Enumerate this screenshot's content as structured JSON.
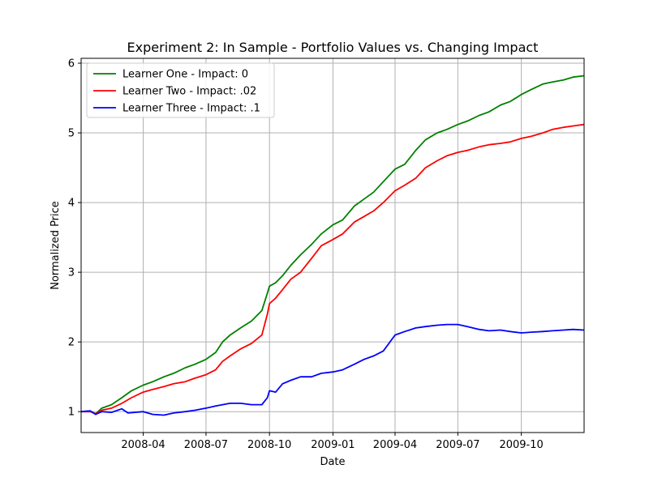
{
  "chart_data": {
    "type": "line",
    "title": "Experiment 2: In Sample - Portfolio Values vs. Changing Impact",
    "xlabel": "Date",
    "ylabel": "Normalized Price",
    "xlim": [
      "2008-01-02",
      "2009-12-31"
    ],
    "ylim": [
      0.7,
      6.07
    ],
    "x_ticks": [
      "2008-04-01",
      "2008-07-01",
      "2008-10-01",
      "2009-01-01",
      "2009-04-01",
      "2009-07-01",
      "2009-10-01"
    ],
    "x_tick_labels": [
      "2008-04",
      "2008-07",
      "2008-10",
      "2009-01",
      "2009-04",
      "2009-07",
      "2009-10"
    ],
    "y_ticks": [
      1,
      2,
      3,
      4,
      5,
      6
    ],
    "y_tick_labels": [
      "1",
      "2",
      "3",
      "4",
      "5",
      "6"
    ],
    "grid": true,
    "legend_position": "top-left",
    "series": [
      {
        "name": "Learner One - Impact: 0",
        "color": "#008000",
        "points": [
          [
            "2008-01-02",
            1.0
          ],
          [
            "2008-01-15",
            1.01
          ],
          [
            "2008-01-23",
            0.97
          ],
          [
            "2008-02-01",
            1.05
          ],
          [
            "2008-02-15",
            1.1
          ],
          [
            "2008-03-01",
            1.2
          ],
          [
            "2008-03-15",
            1.3
          ],
          [
            "2008-04-01",
            1.38
          ],
          [
            "2008-04-15",
            1.43
          ],
          [
            "2008-05-01",
            1.5
          ],
          [
            "2008-05-15",
            1.55
          ],
          [
            "2008-06-01",
            1.63
          ],
          [
            "2008-06-15",
            1.68
          ],
          [
            "2008-07-01",
            1.75
          ],
          [
            "2008-07-15",
            1.85
          ],
          [
            "2008-07-25",
            2.0
          ],
          [
            "2008-08-05",
            2.1
          ],
          [
            "2008-08-20",
            2.2
          ],
          [
            "2008-09-05",
            2.3
          ],
          [
            "2008-09-20",
            2.45
          ],
          [
            "2008-09-28",
            2.7
          ],
          [
            "2008-10-01",
            2.8
          ],
          [
            "2008-10-10",
            2.85
          ],
          [
            "2008-10-20",
            2.95
          ],
          [
            "2008-11-01",
            3.1
          ],
          [
            "2008-11-15",
            3.25
          ],
          [
            "2008-12-01",
            3.4
          ],
          [
            "2008-12-15",
            3.55
          ],
          [
            "2009-01-01",
            3.68
          ],
          [
            "2009-01-15",
            3.75
          ],
          [
            "2009-02-01",
            3.95
          ],
          [
            "2009-02-15",
            4.05
          ],
          [
            "2009-03-01",
            4.15
          ],
          [
            "2009-03-15",
            4.3
          ],
          [
            "2009-04-01",
            4.48
          ],
          [
            "2009-04-15",
            4.55
          ],
          [
            "2009-05-01",
            4.75
          ],
          [
            "2009-05-15",
            4.9
          ],
          [
            "2009-06-01",
            5.0
          ],
          [
            "2009-06-15",
            5.05
          ],
          [
            "2009-07-01",
            5.12
          ],
          [
            "2009-07-15",
            5.17
          ],
          [
            "2009-08-01",
            5.25
          ],
          [
            "2009-08-15",
            5.3
          ],
          [
            "2009-09-01",
            5.4
          ],
          [
            "2009-09-15",
            5.45
          ],
          [
            "2009-10-01",
            5.55
          ],
          [
            "2009-10-15",
            5.62
          ],
          [
            "2009-11-01",
            5.7
          ],
          [
            "2009-11-15",
            5.73
          ],
          [
            "2009-12-01",
            5.76
          ],
          [
            "2009-12-15",
            5.8
          ],
          [
            "2009-12-31",
            5.82
          ]
        ]
      },
      {
        "name": "Learner Two - Impact: .02",
        "color": "#ff0000",
        "points": [
          [
            "2008-01-02",
            1.0
          ],
          [
            "2008-01-15",
            1.0
          ],
          [
            "2008-01-23",
            0.97
          ],
          [
            "2008-02-01",
            1.02
          ],
          [
            "2008-02-15",
            1.05
          ],
          [
            "2008-03-01",
            1.12
          ],
          [
            "2008-03-15",
            1.2
          ],
          [
            "2008-04-01",
            1.28
          ],
          [
            "2008-04-15",
            1.32
          ],
          [
            "2008-05-01",
            1.36
          ],
          [
            "2008-05-15",
            1.4
          ],
          [
            "2008-06-01",
            1.43
          ],
          [
            "2008-06-15",
            1.48
          ],
          [
            "2008-07-01",
            1.53
          ],
          [
            "2008-07-15",
            1.6
          ],
          [
            "2008-07-25",
            1.72
          ],
          [
            "2008-08-05",
            1.8
          ],
          [
            "2008-08-20",
            1.9
          ],
          [
            "2008-09-05",
            1.98
          ],
          [
            "2008-09-20",
            2.1
          ],
          [
            "2008-09-28",
            2.4
          ],
          [
            "2008-10-01",
            2.55
          ],
          [
            "2008-10-10",
            2.63
          ],
          [
            "2008-10-20",
            2.75
          ],
          [
            "2008-11-01",
            2.9
          ],
          [
            "2008-11-15",
            3.0
          ],
          [
            "2008-12-01",
            3.2
          ],
          [
            "2008-12-15",
            3.38
          ],
          [
            "2009-01-01",
            3.47
          ],
          [
            "2009-01-15",
            3.55
          ],
          [
            "2009-02-01",
            3.72
          ],
          [
            "2009-02-15",
            3.8
          ],
          [
            "2009-03-01",
            3.88
          ],
          [
            "2009-03-15",
            4.0
          ],
          [
            "2009-04-01",
            4.17
          ],
          [
            "2009-04-15",
            4.25
          ],
          [
            "2009-05-01",
            4.35
          ],
          [
            "2009-05-15",
            4.5
          ],
          [
            "2009-06-01",
            4.6
          ],
          [
            "2009-06-15",
            4.67
          ],
          [
            "2009-07-01",
            4.72
          ],
          [
            "2009-07-15",
            4.75
          ],
          [
            "2009-08-01",
            4.8
          ],
          [
            "2009-08-15",
            4.83
          ],
          [
            "2009-09-01",
            4.85
          ],
          [
            "2009-09-15",
            4.87
          ],
          [
            "2009-10-01",
            4.92
          ],
          [
            "2009-10-15",
            4.95
          ],
          [
            "2009-11-01",
            5.0
          ],
          [
            "2009-11-15",
            5.05
          ],
          [
            "2009-12-01",
            5.08
          ],
          [
            "2009-12-15",
            5.1
          ],
          [
            "2009-12-31",
            5.12
          ]
        ]
      },
      {
        "name": "Learner Three - Impact: .1",
        "color": "#0000ff",
        "points": [
          [
            "2008-01-02",
            1.0
          ],
          [
            "2008-01-15",
            1.01
          ],
          [
            "2008-01-23",
            0.96
          ],
          [
            "2008-02-01",
            1.0
          ],
          [
            "2008-02-15",
            0.99
          ],
          [
            "2008-03-01",
            1.04
          ],
          [
            "2008-03-10",
            0.98
          ],
          [
            "2008-04-01",
            1.0
          ],
          [
            "2008-04-15",
            0.96
          ],
          [
            "2008-05-01",
            0.95
          ],
          [
            "2008-05-15",
            0.98
          ],
          [
            "2008-06-01",
            1.0
          ],
          [
            "2008-06-15",
            1.02
          ],
          [
            "2008-07-01",
            1.05
          ],
          [
            "2008-07-15",
            1.08
          ],
          [
            "2008-07-25",
            1.1
          ],
          [
            "2008-08-05",
            1.12
          ],
          [
            "2008-08-20",
            1.12
          ],
          [
            "2008-09-05",
            1.1
          ],
          [
            "2008-09-20",
            1.1
          ],
          [
            "2008-09-28",
            1.2
          ],
          [
            "2008-10-01",
            1.3
          ],
          [
            "2008-10-10",
            1.28
          ],
          [
            "2008-10-20",
            1.4
          ],
          [
            "2008-11-01",
            1.45
          ],
          [
            "2008-11-15",
            1.5
          ],
          [
            "2008-12-01",
            1.5
          ],
          [
            "2008-12-15",
            1.55
          ],
          [
            "2009-01-01",
            1.57
          ],
          [
            "2009-01-15",
            1.6
          ],
          [
            "2009-02-01",
            1.68
          ],
          [
            "2009-02-15",
            1.75
          ],
          [
            "2009-03-01",
            1.8
          ],
          [
            "2009-03-15",
            1.87
          ],
          [
            "2009-04-01",
            2.1
          ],
          [
            "2009-04-15",
            2.15
          ],
          [
            "2009-05-01",
            2.2
          ],
          [
            "2009-05-15",
            2.22
          ],
          [
            "2009-06-01",
            2.24
          ],
          [
            "2009-06-15",
            2.25
          ],
          [
            "2009-07-01",
            2.25
          ],
          [
            "2009-07-15",
            2.22
          ],
          [
            "2009-08-01",
            2.18
          ],
          [
            "2009-08-15",
            2.16
          ],
          [
            "2009-09-01",
            2.17
          ],
          [
            "2009-09-15",
            2.15
          ],
          [
            "2009-10-01",
            2.13
          ],
          [
            "2009-10-15",
            2.14
          ],
          [
            "2009-11-01",
            2.15
          ],
          [
            "2009-11-15",
            2.16
          ],
          [
            "2009-12-01",
            2.17
          ],
          [
            "2009-12-15",
            2.18
          ],
          [
            "2009-12-31",
            2.17
          ]
        ]
      }
    ]
  }
}
